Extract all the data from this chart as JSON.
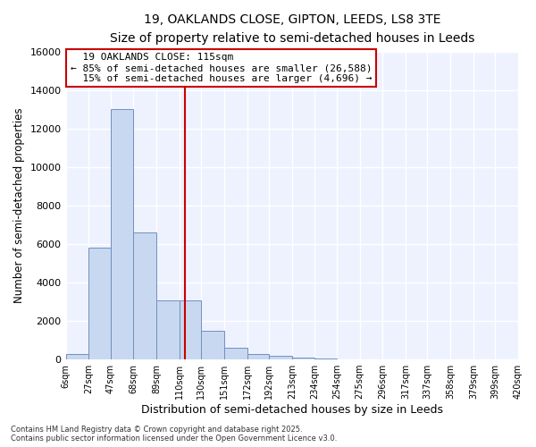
{
  "title_line1": "19, OAKLANDS CLOSE, GIPTON, LEEDS, LS8 3TE",
  "title_line2": "Size of property relative to semi-detached houses in Leeds",
  "xlabel": "Distribution of semi-detached houses by size in Leeds",
  "ylabel": "Number of semi-detached properties",
  "property_label": "19 OAKLANDS CLOSE: 115sqm",
  "pct_smaller": 85,
  "n_smaller": 26588,
  "pct_larger": 15,
  "n_larger": 4696,
  "bin_edges": [
    6,
    27,
    47,
    68,
    89,
    110,
    130,
    151,
    172,
    192,
    213,
    234,
    254,
    275,
    296,
    317,
    337,
    358,
    379,
    399,
    420
  ],
  "bin_labels": [
    "6sqm",
    "27sqm",
    "47sqm",
    "68sqm",
    "89sqm",
    "110sqm",
    "130sqm",
    "151sqm",
    "172sqm",
    "192sqm",
    "213sqm",
    "234sqm",
    "254sqm",
    "275sqm",
    "296sqm",
    "317sqm",
    "337sqm",
    "358sqm",
    "379sqm",
    "399sqm",
    "420sqm"
  ],
  "bar_heights": [
    300,
    5800,
    13000,
    6600,
    3050,
    3050,
    1500,
    620,
    270,
    170,
    110,
    50,
    20,
    10,
    5,
    3,
    2,
    1,
    1,
    0
  ],
  "bar_fill_color": "#c8d8f0",
  "bar_edge_color": "#7090c0",
  "vline_x": 115,
  "vline_color": "#cc0000",
  "ylim": [
    0,
    16000
  ],
  "yticks": [
    0,
    2000,
    4000,
    6000,
    8000,
    10000,
    12000,
    14000,
    16000
  ],
  "bg_color": "#ffffff",
  "plot_bg_color": "#eef2ff",
  "grid_color": "#ffffff",
  "annotation_box_facecolor": "#ffffff",
  "annotation_box_edgecolor": "#cc0000",
  "footer_line1": "Contains HM Land Registry data © Crown copyright and database right 2025.",
  "footer_line2": "Contains public sector information licensed under the Open Government Licence v3.0."
}
